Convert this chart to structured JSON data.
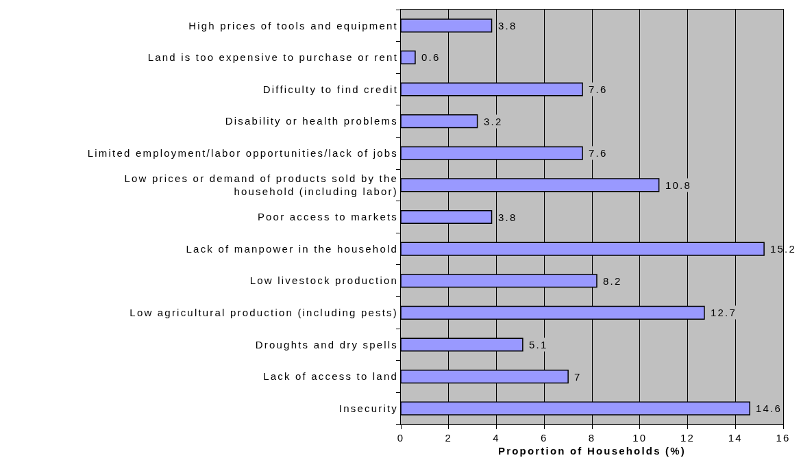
{
  "chart_data": {
    "type": "bar",
    "orientation": "horizontal",
    "xlabel": "Proportion of Households (%)",
    "categories": [
      "High prices of tools and equipment",
      "Land is too expensive to purchase or rent",
      "Difficulty to find credit",
      "Disability or health problems",
      "Limited employment/labor opportunities/lack of jobs",
      "Low prices or demand of products sold by the household (including labor)",
      "Poor access to markets",
      "Lack of manpower in the household",
      "Low livestock production",
      "Low agricultural production (including pests)",
      "Droughts and dry spells",
      "Lack of access to land",
      "Insecurity"
    ],
    "values": [
      3.8,
      0.6,
      7.6,
      3.2,
      7.6,
      10.8,
      3.8,
      15.2,
      8.2,
      12.7,
      5.1,
      7,
      14.6
    ],
    "color": "#9999ff",
    "xlim": [
      0,
      16
    ],
    "xticks": [
      0,
      2,
      4,
      6,
      8,
      10,
      12,
      14,
      16
    ],
    "grid": "x",
    "data_labels": true
  }
}
